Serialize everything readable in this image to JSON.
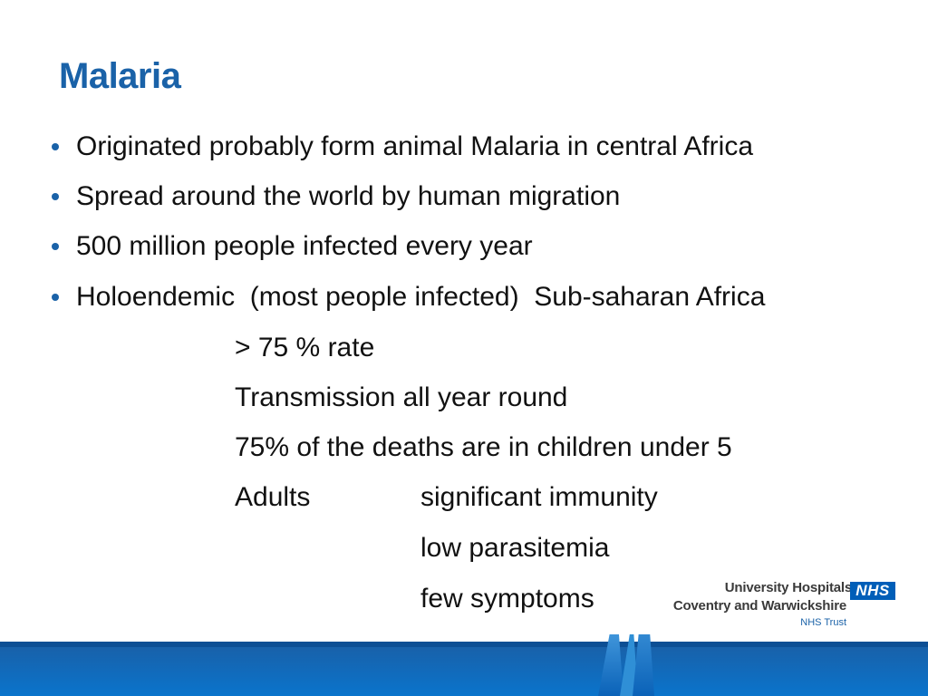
{
  "slide": {
    "title": "Malaria",
    "bullets": [
      "Originated probably form animal Malaria in central Africa",
      "Spread around the world by human migration",
      "500 million people infected every year",
      "Holoendemic  (most people infected)  Sub-saharan Africa"
    ],
    "sub_points": [
      "> 75 % rate",
      "Transmission all year round",
      "75% of the deaths are in children under 5"
    ],
    "adults": {
      "label": "Adults",
      "items": [
        "significant immunity",
        "low parasitemia",
        "few symptoms"
      ]
    }
  },
  "branding": {
    "org_line1": "University Hospitals",
    "org_line2": "Coventry and Warwickshire",
    "trust": "NHS Trust",
    "nhs_mark": "NHS",
    "colors": {
      "title": "#1a62a8",
      "nhs_blue": "#005eb8",
      "footer_blue": "#0b6fc4"
    }
  }
}
